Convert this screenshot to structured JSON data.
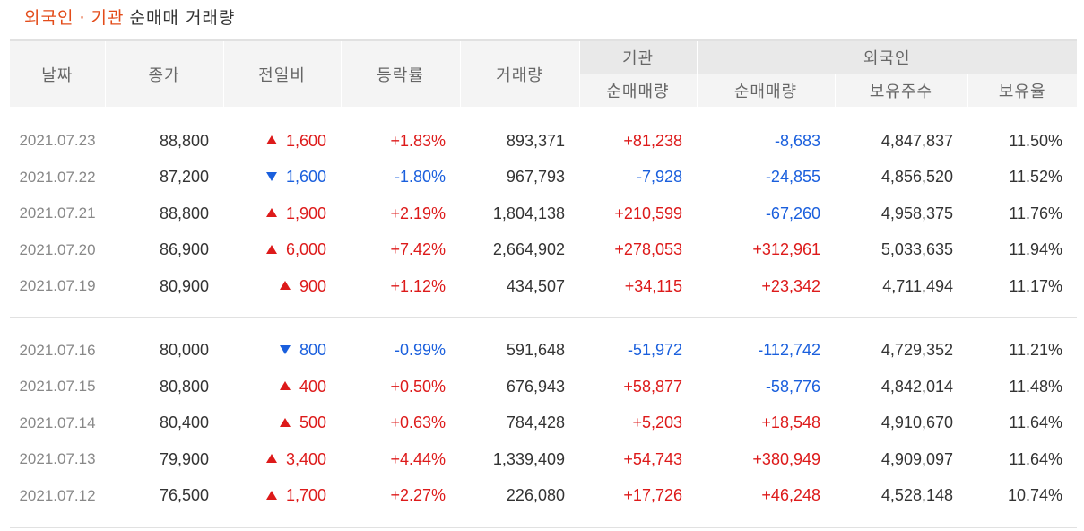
{
  "title": {
    "part1": "외국인",
    "dot": "·",
    "part2": "기관",
    "rest": "순매매 거래량"
  },
  "header": {
    "date": "날짜",
    "close": "종가",
    "change": "전일비",
    "rate": "등락률",
    "volume": "거래량",
    "institution": "기관",
    "foreign": "외국인",
    "inst_net": "순매매량",
    "foreign_net": "순매매량",
    "foreign_hold": "보유주수",
    "foreign_ratio": "보유율"
  },
  "colors": {
    "up": "#dd1a1a",
    "down": "#1a5fdd",
    "accent": "#e34c1a"
  },
  "rows": [
    {
      "date": "2021.07.23",
      "close": "88,800",
      "dir": "up",
      "change": "1,600",
      "rate": "+1.83%",
      "volume": "893,371",
      "inst": "+81,238",
      "foreign": "-8,683",
      "hold": "4,847,837",
      "ratio": "11.50%"
    },
    {
      "date": "2021.07.22",
      "close": "87,200",
      "dir": "down",
      "change": "1,600",
      "rate": "-1.80%",
      "volume": "967,793",
      "inst": "-7,928",
      "foreign": "-24,855",
      "hold": "4,856,520",
      "ratio": "11.52%"
    },
    {
      "date": "2021.07.21",
      "close": "88,800",
      "dir": "up",
      "change": "1,900",
      "rate": "+2.19%",
      "volume": "1,804,138",
      "inst": "+210,599",
      "foreign": "-67,260",
      "hold": "4,958,375",
      "ratio": "11.76%"
    },
    {
      "date": "2021.07.20",
      "close": "86,900",
      "dir": "up",
      "change": "6,000",
      "rate": "+7.42%",
      "volume": "2,664,902",
      "inst": "+278,053",
      "foreign": "+312,961",
      "hold": "5,033,635",
      "ratio": "11.94%"
    },
    {
      "date": "2021.07.19",
      "close": "80,900",
      "dir": "up",
      "change": "900",
      "rate": "+1.12%",
      "volume": "434,507",
      "inst": "+34,115",
      "foreign": "+23,342",
      "hold": "4,711,494",
      "ratio": "11.17%"
    },
    {
      "date": "2021.07.16",
      "close": "80,000",
      "dir": "down",
      "change": "800",
      "rate": "-0.99%",
      "volume": "591,648",
      "inst": "-51,972",
      "foreign": "-112,742",
      "hold": "4,729,352",
      "ratio": "11.21%"
    },
    {
      "date": "2021.07.15",
      "close": "80,800",
      "dir": "up",
      "change": "400",
      "rate": "+0.50%",
      "volume": "676,943",
      "inst": "+58,877",
      "foreign": "-58,776",
      "hold": "4,842,014",
      "ratio": "11.48%"
    },
    {
      "date": "2021.07.14",
      "close": "80,400",
      "dir": "up",
      "change": "500",
      "rate": "+0.63%",
      "volume": "784,428",
      "inst": "+5,203",
      "foreign": "+18,548",
      "hold": "4,910,670",
      "ratio": "11.64%"
    },
    {
      "date": "2021.07.13",
      "close": "79,900",
      "dir": "up",
      "change": "3,400",
      "rate": "+4.44%",
      "volume": "1,339,409",
      "inst": "+54,743",
      "foreign": "+380,949",
      "hold": "4,909,097",
      "ratio": "11.64%"
    },
    {
      "date": "2021.07.12",
      "close": "76,500",
      "dir": "up",
      "change": "1,700",
      "rate": "+2.27%",
      "volume": "226,080",
      "inst": "+17,726",
      "foreign": "+46,248",
      "hold": "4,528,148",
      "ratio": "10.74%"
    }
  ]
}
